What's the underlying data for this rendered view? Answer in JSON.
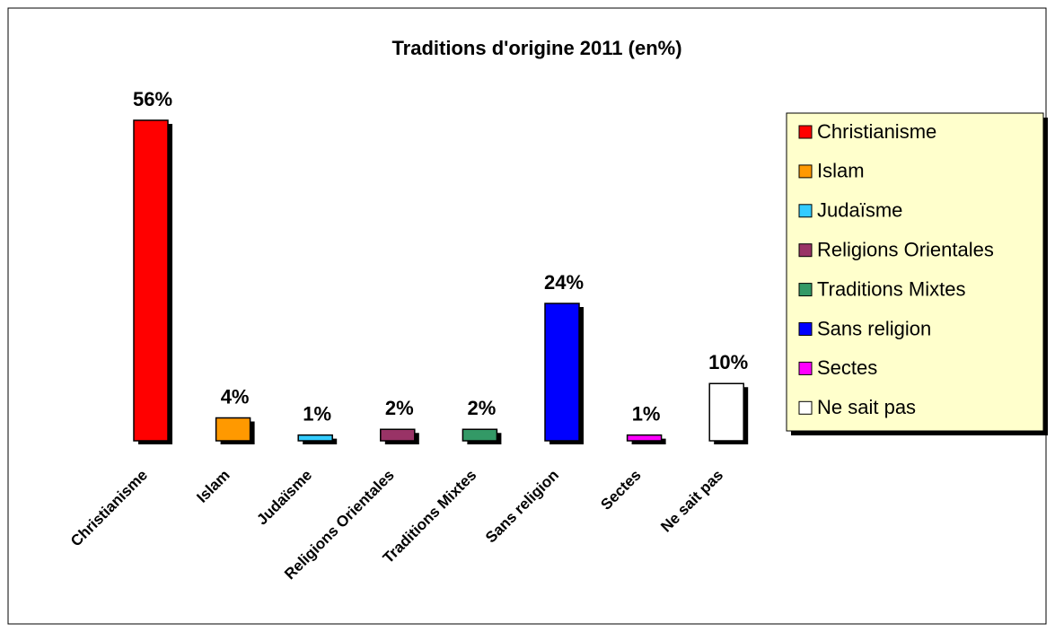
{
  "chart_data": {
    "type": "bar",
    "title": "Traditions d'origine 2011 (en%)",
    "categories": [
      "Christianisme",
      "Islam",
      "Judaïsme",
      "Religions Orientales",
      "Traditions Mixtes",
      "Sans religion",
      "Sectes",
      "Ne sait pas"
    ],
    "values": [
      56,
      4,
      1,
      2,
      2,
      24,
      1,
      10
    ],
    "value_labels": [
      "56%",
      "4%",
      "1%",
      "2%",
      "2%",
      "24%",
      "1%",
      "10%"
    ],
    "colors": [
      "#ff0000",
      "#ff9900",
      "#33ccff",
      "#993366",
      "#339966",
      "#0000ff",
      "#ff00ff",
      "#ffffff"
    ],
    "legend": "right"
  }
}
